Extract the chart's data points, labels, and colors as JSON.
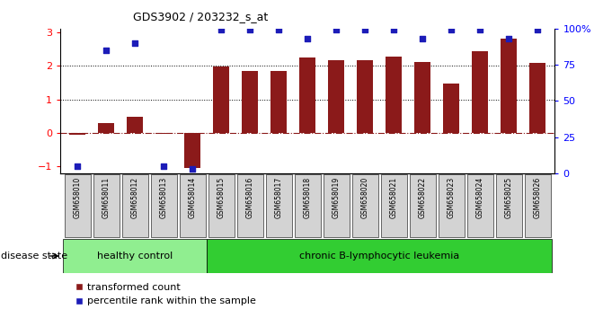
{
  "title": "GDS3902 / 203232_s_at",
  "samples": [
    "GSM658010",
    "GSM658011",
    "GSM658012",
    "GSM658013",
    "GSM658014",
    "GSM658015",
    "GSM658016",
    "GSM658017",
    "GSM658018",
    "GSM658019",
    "GSM658020",
    "GSM658021",
    "GSM658022",
    "GSM658023",
    "GSM658024",
    "GSM658025",
    "GSM658026"
  ],
  "red_bars": [
    -0.05,
    0.28,
    0.48,
    -0.02,
    -1.05,
    1.97,
    1.83,
    1.83,
    2.25,
    2.15,
    2.15,
    2.28,
    2.12,
    1.48,
    2.43,
    2.8,
    2.07
  ],
  "blue_dots_pct": [
    5,
    85,
    90,
    5,
    3,
    99,
    99,
    99,
    93,
    99,
    99,
    99,
    93,
    99,
    99,
    93,
    99
  ],
  "group_labels": [
    "healthy control",
    "chronic B-lymphocytic leukemia"
  ],
  "n_group1": 5,
  "ylim": [
    -1.2,
    3.1
  ],
  "y2lim": [
    0,
    100
  ],
  "yticks": [
    -1,
    0,
    1,
    2,
    3
  ],
  "y2ticks": [
    0,
    25,
    50,
    75,
    100
  ],
  "hline_y": 0,
  "dotted_lines": [
    1,
    2
  ],
  "bar_color": "#8B1A1A",
  "dot_color": "#1C1CB8",
  "group1_color": "#90EE90",
  "group2_color": "#32CD32",
  "legend_items": [
    "transformed count",
    "percentile rank within the sample"
  ],
  "disease_state_label": "disease state",
  "bar_width": 0.55,
  "background_color": "#ffffff"
}
